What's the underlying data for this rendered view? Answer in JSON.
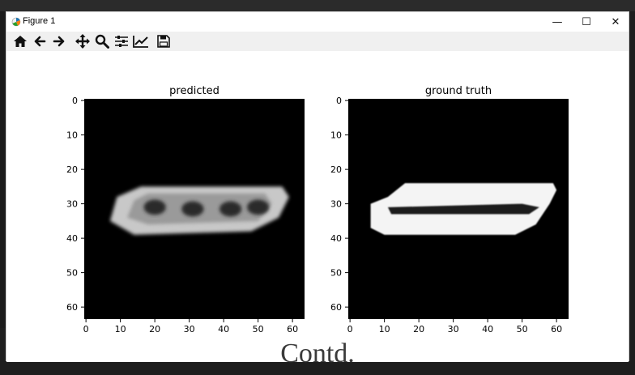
{
  "window": {
    "title": "Figure 1",
    "controls": {
      "minimize": "—",
      "maximize": "☐",
      "close": "✕"
    }
  },
  "toolbar": {
    "icons": [
      "home-icon",
      "back-icon",
      "forward-icon",
      "pan-icon",
      "zoom-icon",
      "configure-subplots-icon",
      "edit-axis-icon",
      "save-icon"
    ]
  },
  "chart_data": [
    {
      "type": "heatmap",
      "title": "predicted",
      "colormap": "gray",
      "xlim": [
        0,
        63
      ],
      "ylim": [
        63,
        0
      ],
      "xticks": [
        0,
        10,
        20,
        30,
        40,
        50,
        60
      ],
      "yticks": [
        0,
        10,
        20,
        30,
        40,
        50,
        60
      ],
      "grid": false
    },
    {
      "type": "heatmap",
      "title": "ground truth",
      "colormap": "gray",
      "xlim": [
        0,
        63
      ],
      "ylim": [
        63,
        0
      ],
      "xticks": [
        0,
        10,
        20,
        30,
        40,
        50,
        60
      ],
      "yticks": [
        0,
        10,
        20,
        30,
        40,
        50,
        60
      ],
      "grid": false
    }
  ],
  "caption": "Contd."
}
